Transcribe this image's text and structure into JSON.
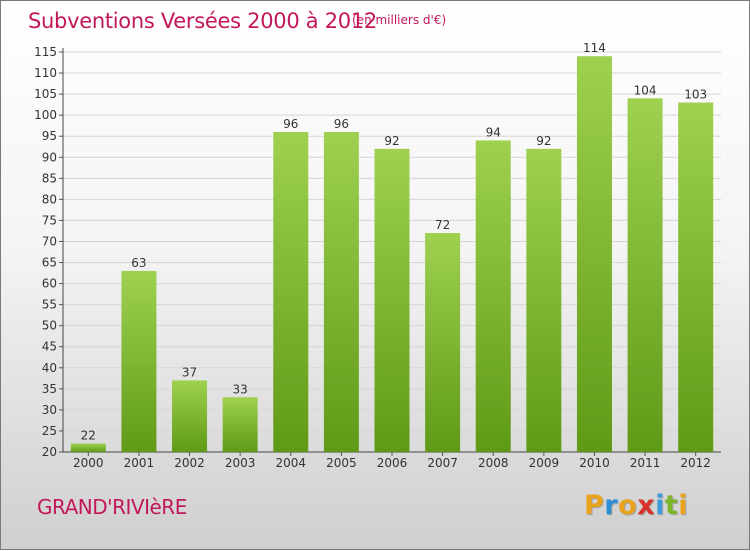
{
  "chart_data": {
    "type": "bar",
    "title": "Subventions Versées 2000 à 2012",
    "subtitle": "(en milliers d'€)",
    "categories": [
      "2000",
      "2001",
      "2002",
      "2003",
      "2004",
      "2005",
      "2006",
      "2007",
      "2008",
      "2009",
      "2010",
      "2011",
      "2012"
    ],
    "values": [
      22,
      63,
      37,
      33,
      96,
      96,
      92,
      72,
      94,
      92,
      114,
      104,
      103
    ],
    "ylim": [
      20,
      115
    ],
    "yticks": [
      20,
      25,
      30,
      35,
      40,
      45,
      50,
      55,
      60,
      65,
      70,
      75,
      80,
      85,
      90,
      95,
      100,
      105,
      110,
      115
    ],
    "grid": true,
    "colors": {
      "bar_top": "#9ed14f",
      "bar_bottom": "#5f9a17",
      "text": "#c2185b"
    }
  },
  "place": "GRAND'RIVIèRE",
  "brand": {
    "letters": [
      "P",
      "r",
      "o",
      "x",
      "i",
      "t",
      "i"
    ],
    "colors": [
      "#e9a21b",
      "#2a8fd6",
      "#e9a21b",
      "#d8322a",
      "#3c9ad8",
      "#7bb62a",
      "#e9a21b"
    ]
  }
}
